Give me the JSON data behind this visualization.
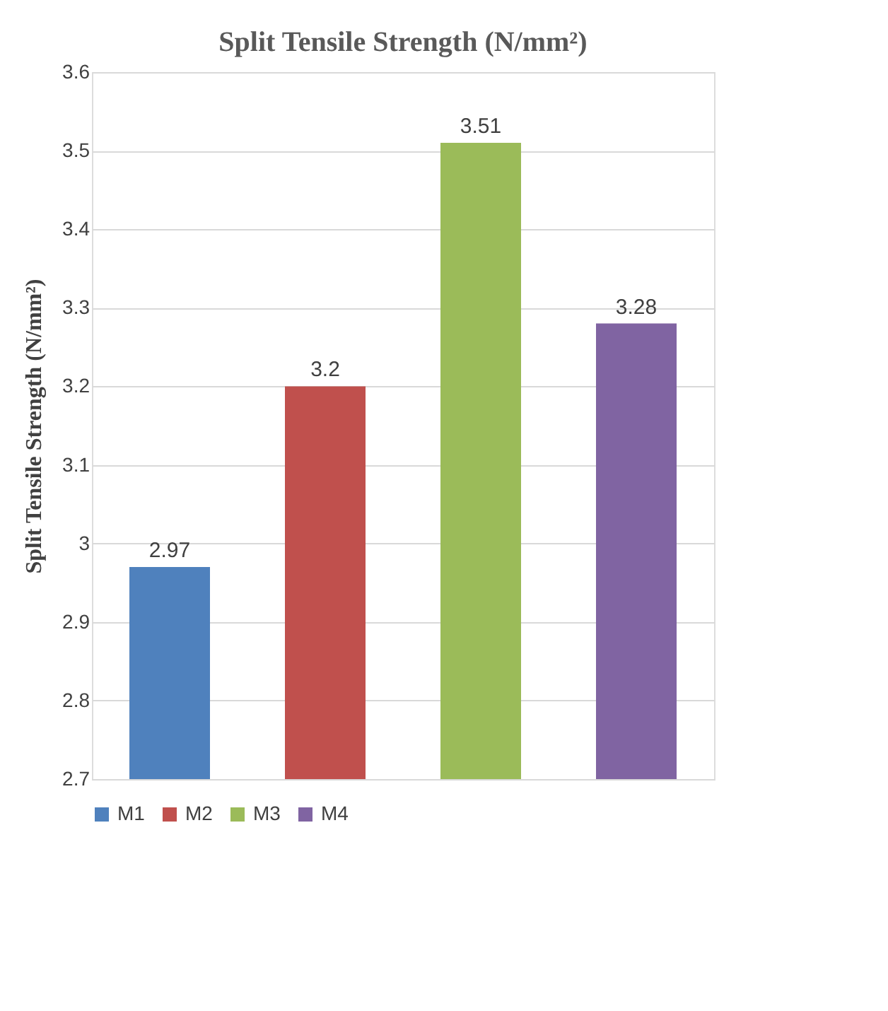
{
  "chart_data": {
    "type": "bar",
    "title": "Split Tensile Strength (N/mm²)",
    "ylabel": "Split Tensile Strength (N/mm²)",
    "categories": [
      null,
      null,
      null,
      null
    ],
    "series": [
      {
        "name": "M1",
        "color": "#4f81bd",
        "values": [
          2.97,
          null,
          null,
          null
        ]
      },
      {
        "name": "M2",
        "color": "#c0504d",
        "values": [
          null,
          3.2,
          null,
          null
        ]
      },
      {
        "name": "M3",
        "color": "#9bbb59",
        "values": [
          null,
          null,
          3.51,
          null
        ]
      },
      {
        "name": "M4",
        "color": "#8064a2",
        "values": [
          null,
          null,
          null,
          3.28
        ]
      }
    ],
    "ylim": [
      2.7,
      3.6
    ],
    "yticks": [
      2.7,
      2.8,
      2.9,
      3,
      3.1,
      3.2,
      3.3,
      3.4,
      3.5,
      3.6
    ],
    "data_labels": true,
    "grid": "y",
    "legend": "bottom"
  }
}
